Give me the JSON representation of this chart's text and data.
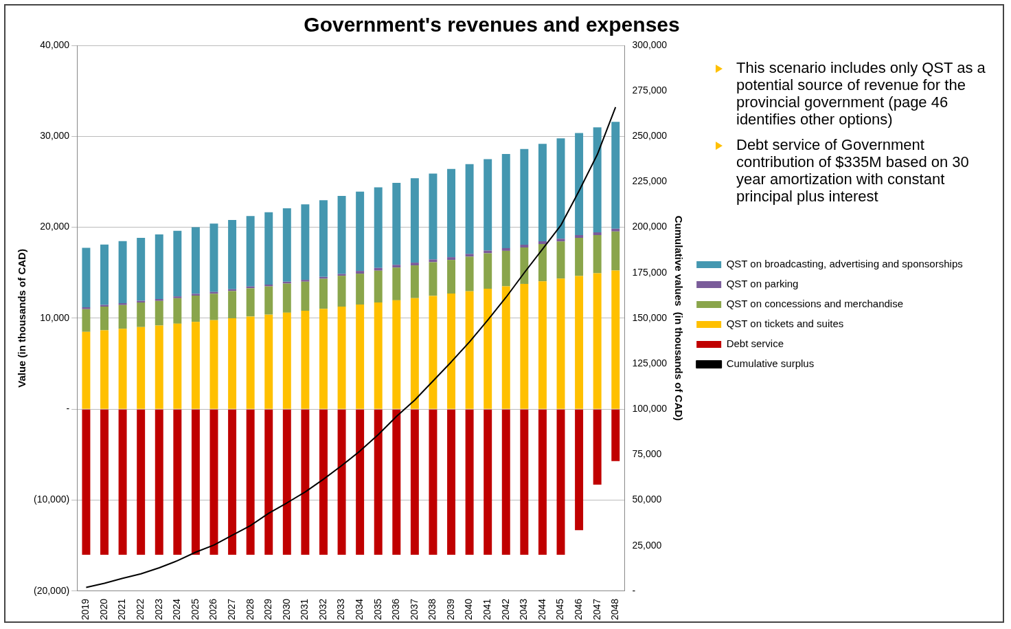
{
  "chart_data": {
    "type": "bar",
    "title": "Government's revenues and expenses",
    "ylabel": "Value (in thousands of CAD)",
    "y2label": "Cumulative values  (in thousands of CAD)",
    "categories": [
      "2019",
      "2020",
      "2021",
      "2022",
      "2023",
      "2024",
      "2025",
      "2026",
      "2027",
      "2028",
      "2029",
      "2030",
      "2031",
      "2032",
      "2033",
      "2034",
      "2035",
      "2036",
      "2037",
      "2038",
      "2039",
      "2040",
      "2041",
      "2042",
      "2043",
      "2044",
      "2045",
      "2046",
      "2047",
      "2048"
    ],
    "stacked": true,
    "series": [
      {
        "name": "Debt service",
        "color": "#c00000",
        "values": [
          -16000,
          -16000,
          -16000,
          -16000,
          -16000,
          -16000,
          -16000,
          -16000,
          -16000,
          -16000,
          -16000,
          -16000,
          -16000,
          -16000,
          -16000,
          -16000,
          -16000,
          -16000,
          -16000,
          -16000,
          -16000,
          -16000,
          -16000,
          -16000,
          -16000,
          -16000,
          -16000,
          -13300,
          -8300,
          -5700
        ]
      },
      {
        "name": "QST on tickets and suites",
        "color": "#ffc000",
        "values": [
          8500,
          8670,
          8850,
          9030,
          9210,
          9400,
          9590,
          9790,
          9990,
          10190,
          10400,
          10610,
          10820,
          11040,
          11270,
          11500,
          11730,
          11970,
          12210,
          12460,
          12710,
          12970,
          13240,
          13510,
          13780,
          14060,
          14350,
          14640,
          14940,
          15240
        ]
      },
      {
        "name": "QST on concessions and merchandise",
        "color": "#8aa54b",
        "values": [
          2500,
          2600,
          2600,
          2700,
          2700,
          2800,
          2900,
          2900,
          3000,
          3100,
          3100,
          3200,
          3200,
          3300,
          3400,
          3400,
          3500,
          3600,
          3600,
          3700,
          3700,
          3800,
          3900,
          3900,
          4000,
          4100,
          4100,
          4200,
          4200,
          4300
        ]
      },
      {
        "name": "QST on parking",
        "color": "#7a5c9a",
        "values": [
          200,
          200,
          200,
          200,
          200,
          200,
          200,
          200,
          200,
          200,
          200,
          200,
          200,
          200,
          200,
          300,
          300,
          300,
          300,
          300,
          300,
          300,
          300,
          300,
          300,
          300,
          300,
          300,
          300,
          300
        ]
      },
      {
        "name": "QST on broadcasting, advertising and sponsorships",
        "color": "#4497b0",
        "values": [
          6550,
          6640,
          6820,
          6910,
          7110,
          7210,
          7310,
          7510,
          7620,
          7740,
          7960,
          8080,
          8310,
          8440,
          8580,
          8720,
          8870,
          9020,
          9280,
          9440,
          9710,
          9880,
          10050,
          10340,
          10530,
          10720,
          11020,
          11230,
          11540,
          11760
        ]
      },
      {
        "name": "Cumulative surplus",
        "type": "line",
        "axis": "y2",
        "color": "#000000",
        "values": [
          2000,
          4300,
          7000,
          9500,
          12800,
          16700,
          21400,
          25300,
          30700,
          36000,
          42800,
          48500,
          54500,
          61500,
          69000,
          77000,
          86000,
          96000,
          105000,
          115500,
          126000,
          137000,
          149000,
          161500,
          175000,
          188000,
          201000,
          220000,
          240000,
          266000
        ]
      }
    ],
    "ylim": [
      -20000,
      40000
    ],
    "yticks": [
      {
        "value": -20000,
        "label": "(20,000)"
      },
      {
        "value": -10000,
        "label": "(10,000)"
      },
      {
        "value": 0,
        "label": "-"
      },
      {
        "value": 10000,
        "label": "10,000"
      },
      {
        "value": 20000,
        "label": "20,000"
      },
      {
        "value": 30000,
        "label": "30,000"
      },
      {
        "value": 40000,
        "label": "40,000"
      }
    ],
    "y2lim": [
      0,
      300000
    ],
    "y2ticks": [
      {
        "value": 0,
        "label": "-"
      },
      {
        "value": 25000,
        "label": "25,000"
      },
      {
        "value": 50000,
        "label": "50,000"
      },
      {
        "value": 75000,
        "label": "75,000"
      },
      {
        "value": 100000,
        "label": "100,000"
      },
      {
        "value": 125000,
        "label": "125,000"
      },
      {
        "value": 150000,
        "label": "150,000"
      },
      {
        "value": 175000,
        "label": "175,000"
      },
      {
        "value": 200000,
        "label": "200,000"
      },
      {
        "value": 225000,
        "label": "225,000"
      },
      {
        "value": 250000,
        "label": "250,000"
      },
      {
        "value": 275000,
        "label": "275,000"
      },
      {
        "value": 300000,
        "label": "300,000"
      }
    ],
    "grid": "y",
    "legend": "right",
    "marker": "none",
    "annotations": [
      "This scenario includes only QST as a potential source of revenue for the provincial government (page 46 identifies other options)",
      "Debt service of Government contribution of $335M based on 30 year amortization with constant principal plus interest"
    ]
  }
}
